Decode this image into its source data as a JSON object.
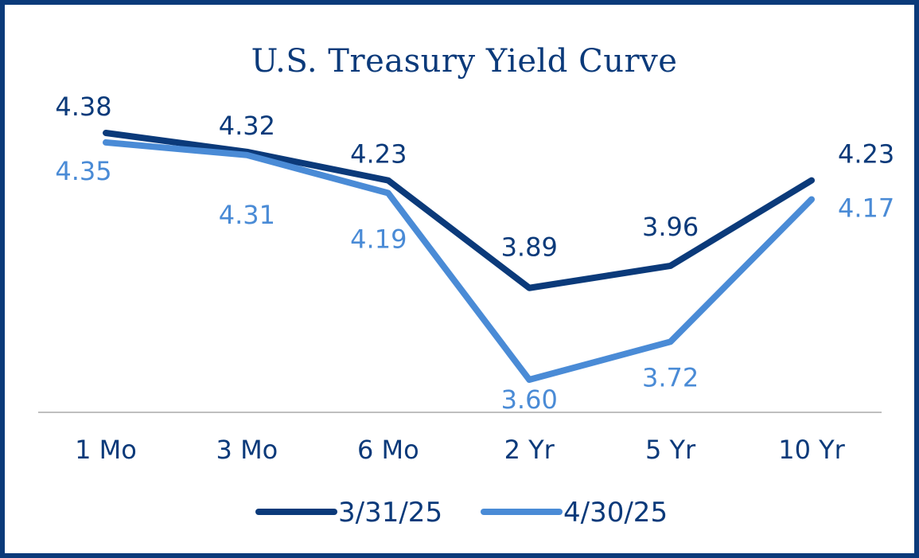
{
  "chart_data": {
    "type": "line",
    "title": "U.S. Treasury Yield Curve",
    "categories": [
      "1 Mo",
      "3 Mo",
      "6 Mo",
      "2 Yr",
      "5 Yr",
      "10 Yr"
    ],
    "series": [
      {
        "name": "3/31/25",
        "color": "#0b3a7a",
        "values": [
          4.38,
          4.32,
          4.23,
          3.89,
          3.96,
          4.23
        ]
      },
      {
        "name": "4/30/25",
        "color": "#4a8bd6",
        "values": [
          4.35,
          4.31,
          4.19,
          3.6,
          3.72,
          4.17
        ]
      }
    ],
    "data_labels": true,
    "legend_position": "bottom",
    "grid": false
  }
}
